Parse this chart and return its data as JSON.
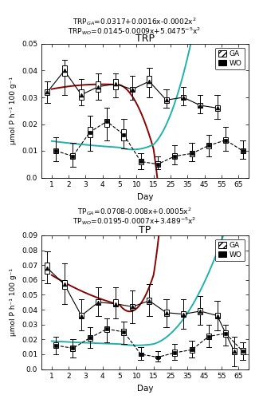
{
  "days": [
    1,
    2,
    3,
    4,
    5,
    10,
    15,
    25,
    35,
    45,
    55,
    65
  ],
  "trp": {
    "title": "TRP",
    "ylabel": "μmol P h⁻¹ 100 g⁻¹",
    "ylim": [
      0.0,
      0.05
    ],
    "yticks": [
      0.0,
      0.01,
      0.02,
      0.03,
      0.04,
      0.05
    ],
    "equation_ga": "TRP$_{GA}$=0.0317+0.0016x-0.0002x$^2$",
    "equation_wo": "TRP$_{WO}$=0.0145-0.0009x+5.0475$^{-5}$x$^2$",
    "ga": {
      "mean": [
        0.032,
        0.04,
        0.031,
        0.034,
        0.035,
        0.033,
        0.036,
        0.029,
        0.03,
        0.027,
        0.026,
        null
      ],
      "se_lo": [
        0.031,
        0.038,
        0.029,
        0.032,
        0.033,
        0.032,
        0.034,
        0.028,
        0.029,
        0.026,
        0.025,
        null
      ],
      "se_hi": [
        0.033,
        0.042,
        0.033,
        0.036,
        0.037,
        0.034,
        0.038,
        0.03,
        0.031,
        0.028,
        0.027,
        null
      ],
      "sd_lo": [
        0.028,
        0.031,
        0.027,
        0.029,
        0.03,
        0.029,
        0.03,
        0.026,
        0.027,
        0.024,
        0.022,
        null
      ],
      "sd_hi": [
        0.036,
        0.044,
        0.037,
        0.039,
        0.039,
        0.038,
        0.041,
        0.033,
        0.034,
        0.031,
        0.031,
        null
      ]
    },
    "wo": {
      "mean": [
        0.01,
        0.008,
        0.017,
        0.021,
        0.016,
        0.006,
        0.005,
        0.008,
        0.009,
        0.012,
        0.014,
        0.01
      ],
      "se_lo": [
        0.009,
        0.007,
        0.015,
        0.019,
        0.014,
        0.005,
        0.004,
        0.007,
        0.008,
        0.011,
        0.013,
        0.009
      ],
      "se_hi": [
        0.011,
        0.009,
        0.019,
        0.022,
        0.018,
        0.007,
        0.006,
        0.009,
        0.01,
        0.013,
        0.015,
        0.011
      ],
      "sd_lo": [
        0.006,
        0.004,
        0.01,
        0.014,
        0.011,
        0.003,
        0.003,
        0.005,
        0.006,
        0.008,
        0.01,
        0.007
      ],
      "sd_hi": [
        0.015,
        0.013,
        0.023,
        0.026,
        0.022,
        0.009,
        0.008,
        0.012,
        0.013,
        0.016,
        0.019,
        0.014
      ]
    },
    "fit_ga_coeffs": [
      0.0317,
      0.0016,
      -0.0002
    ],
    "fit_wo_coeffs": [
      0.0145,
      -0.0009,
      5.0475e-05
    ]
  },
  "tp": {
    "title": "TP",
    "ylabel": "μmol P h⁻¹ 100 g⁻¹",
    "ylim": [
      0.0,
      0.09
    ],
    "yticks": [
      0.0,
      0.01,
      0.02,
      0.03,
      0.04,
      0.05,
      0.06,
      0.07,
      0.08,
      0.09
    ],
    "equation_ga": "TP$_{GA}$=0.0708-0.008x+0.0005x$^2$",
    "equation_wo": "TP$_{WO}$=0.0195-0.0007x+3.489$^{-5}$x$^2$",
    "ga": {
      "mean": [
        0.068,
        0.057,
        0.036,
        0.045,
        0.044,
        0.042,
        0.046,
        0.038,
        0.037,
        0.039,
        0.036,
        0.012
      ],
      "se_lo": [
        0.064,
        0.054,
        0.034,
        0.043,
        0.042,
        0.04,
        0.044,
        0.036,
        0.035,
        0.037,
        0.034,
        0.01
      ],
      "se_hi": [
        0.072,
        0.06,
        0.038,
        0.047,
        0.047,
        0.044,
        0.048,
        0.04,
        0.039,
        0.041,
        0.038,
        0.014
      ],
      "sd_lo": [
        0.058,
        0.044,
        0.026,
        0.036,
        0.034,
        0.031,
        0.036,
        0.028,
        0.027,
        0.03,
        0.026,
        0.002
      ],
      "sd_hi": [
        0.079,
        0.071,
        0.047,
        0.055,
        0.055,
        0.053,
        0.057,
        0.047,
        0.047,
        0.049,
        0.046,
        0.022
      ]
    },
    "wo": {
      "mean": [
        0.016,
        0.014,
        0.021,
        0.027,
        0.025,
        0.01,
        0.008,
        0.011,
        0.013,
        0.022,
        0.024,
        0.012
      ],
      "se_lo": [
        0.014,
        0.012,
        0.019,
        0.025,
        0.023,
        0.009,
        0.007,
        0.009,
        0.011,
        0.02,
        0.022,
        0.01
      ],
      "se_hi": [
        0.018,
        0.016,
        0.023,
        0.029,
        0.027,
        0.011,
        0.009,
        0.013,
        0.015,
        0.024,
        0.026,
        0.014
      ],
      "sd_lo": [
        0.01,
        0.008,
        0.014,
        0.018,
        0.017,
        0.006,
        0.005,
        0.006,
        0.008,
        0.015,
        0.016,
        0.006
      ],
      "sd_hi": [
        0.022,
        0.02,
        0.028,
        0.034,
        0.032,
        0.015,
        0.012,
        0.017,
        0.019,
        0.03,
        0.03,
        0.018
      ]
    },
    "fit_ga_coeffs": [
      0.0708,
      -0.008,
      0.0005
    ],
    "fit_wo_coeffs": [
      0.0195,
      -0.0007,
      3.489e-05
    ]
  },
  "fit_color_ga": "#8B0000",
  "fit_color_wo": "#20B2AA"
}
